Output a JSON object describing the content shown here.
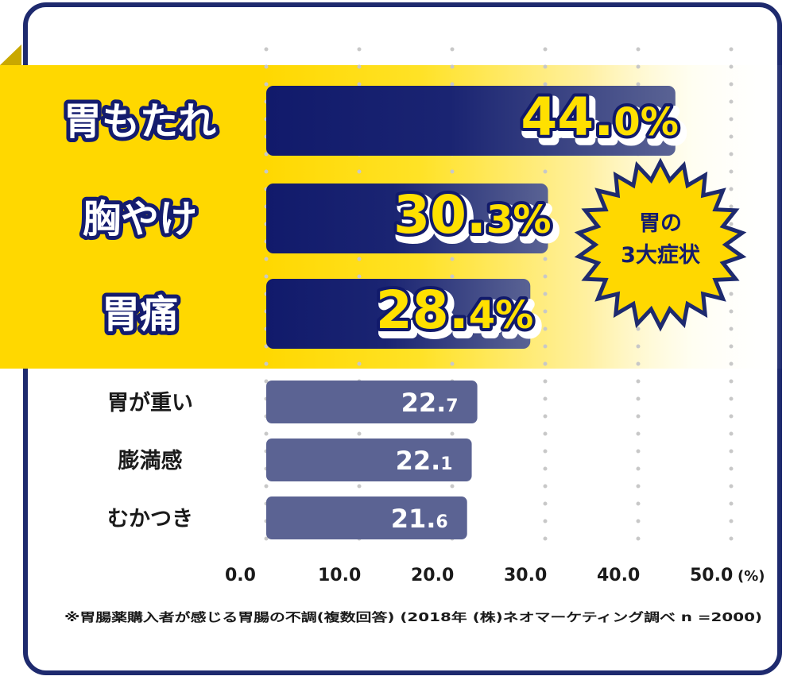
{
  "chart_data": {
    "type": "bar",
    "orientation": "horizontal",
    "categories": [
      "胃もたれ",
      "胸やけ",
      "胃痛",
      "胃が重い",
      "膨満感",
      "むかつき"
    ],
    "values": [
      44.0,
      30.3,
      28.4,
      22.7,
      22.1,
      21.6
    ],
    "value_labels": [
      {
        "main": "44.",
        "decimal": "0",
        "unit": "%"
      },
      {
        "main": "30.",
        "decimal": "3",
        "unit": "%"
      },
      {
        "main": "28.",
        "decimal": "4",
        "unit": "%"
      },
      {
        "main": "22.",
        "decimal": "7",
        "unit": ""
      },
      {
        "main": "22.",
        "decimal": "1",
        "unit": ""
      },
      {
        "main": "21.",
        "decimal": "6",
        "unit": ""
      }
    ],
    "highlighted_count": 3,
    "xlim": [
      0,
      50
    ],
    "x_ticks": [
      {
        "value": 0,
        "label": "0.0"
      },
      {
        "value": 10,
        "label": "10.0"
      },
      {
        "value": 20,
        "label": "20.0"
      },
      {
        "value": 30,
        "label": "30.0"
      },
      {
        "value": 40,
        "label": "40.0"
      },
      {
        "value": 50,
        "label": "50.0"
      }
    ],
    "x_unit": "(%)",
    "grid": "vertical-dotted",
    "badge": {
      "line1": "胃の",
      "line2": "3大症状"
    },
    "footnote": "※胃腸薬購入者が感じる胃腸の不調(複数回答) (2018年 (株)ネオマーケティング調べ n =2000)",
    "colors": {
      "frame": "#1e2a6e",
      "bar_dark": "#111a6b",
      "bar_light": "#5b6393",
      "highlight": "#ffd800",
      "badge": "#ffd800",
      "percent_text": "#ffe000",
      "category_outline": "#141c6e",
      "grid": "#c8c8c8"
    }
  }
}
